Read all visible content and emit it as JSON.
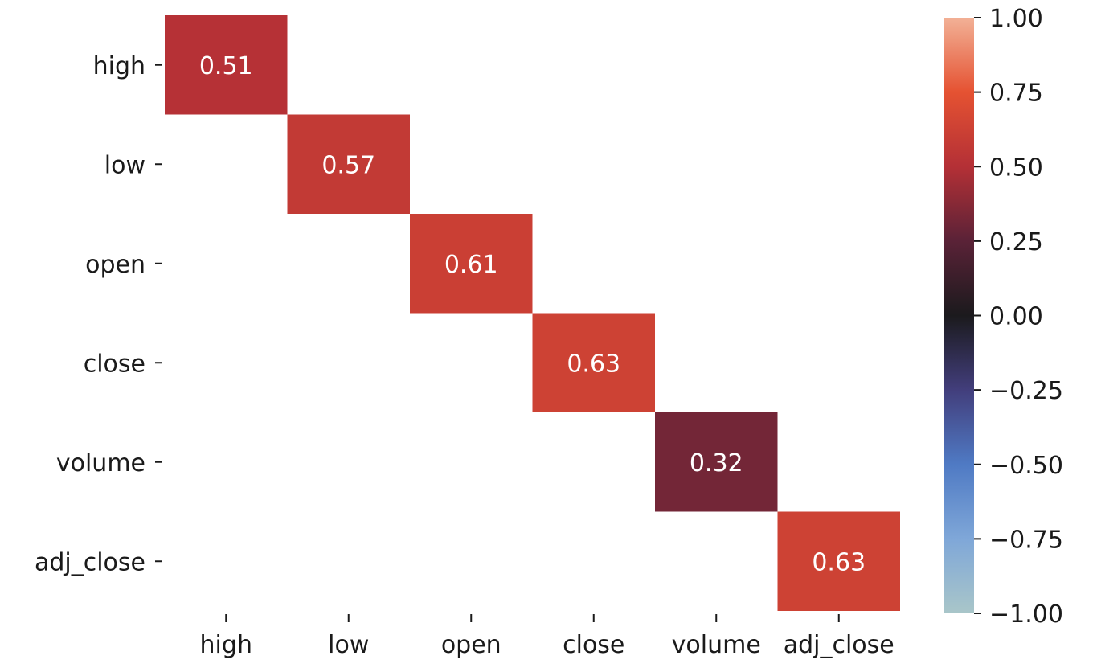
{
  "chart_data": {
    "type": "heatmap",
    "title": "",
    "xlabel": "",
    "ylabel": "",
    "x_categories": [
      "high",
      "low",
      "open",
      "close",
      "volume",
      "adj_close"
    ],
    "y_categories": [
      "high",
      "low",
      "open",
      "close",
      "volume",
      "adj_close"
    ],
    "cells": [
      {
        "row": "high",
        "col": "high",
        "value": 0.51,
        "label": "0.51"
      },
      {
        "row": "low",
        "col": "low",
        "value": 0.57,
        "label": "0.57"
      },
      {
        "row": "open",
        "col": "open",
        "value": 0.61,
        "label": "0.61"
      },
      {
        "row": "close",
        "col": "close",
        "value": 0.63,
        "label": "0.63"
      },
      {
        "row": "volume",
        "col": "volume",
        "value": 0.32,
        "label": "0.32"
      },
      {
        "row": "adj_close",
        "col": "adj_close",
        "value": 0.63,
        "label": "0.63"
      }
    ],
    "colorbar": {
      "range": [
        -1.0,
        1.0
      ],
      "ticks": [
        1.0,
        0.75,
        0.5,
        0.25,
        0.0,
        -0.25,
        -0.5,
        -0.75,
        -1.0
      ],
      "tick_labels": [
        "1.00",
        "0.75",
        "0.50",
        "0.25",
        "0.00",
        "−0.25",
        "−0.50",
        "−0.75",
        "−1.00"
      ],
      "colormap": "icefire",
      "colormap_stops": [
        {
          "value": -1.0,
          "color": "#a9c6c9"
        },
        {
          "value": -0.75,
          "color": "#7fa7d8"
        },
        {
          "value": -0.5,
          "color": "#4f7ac4"
        },
        {
          "value": -0.25,
          "color": "#423e7c"
        },
        {
          "value": 0.0,
          "color": "#1b1a1d"
        },
        {
          "value": 0.25,
          "color": "#5a2237"
        },
        {
          "value": 0.5,
          "color": "#b43036"
        },
        {
          "value": 0.75,
          "color": "#e55232"
        },
        {
          "value": 1.0,
          "color": "#f2b196"
        }
      ]
    },
    "grid": false,
    "legend": "right"
  }
}
